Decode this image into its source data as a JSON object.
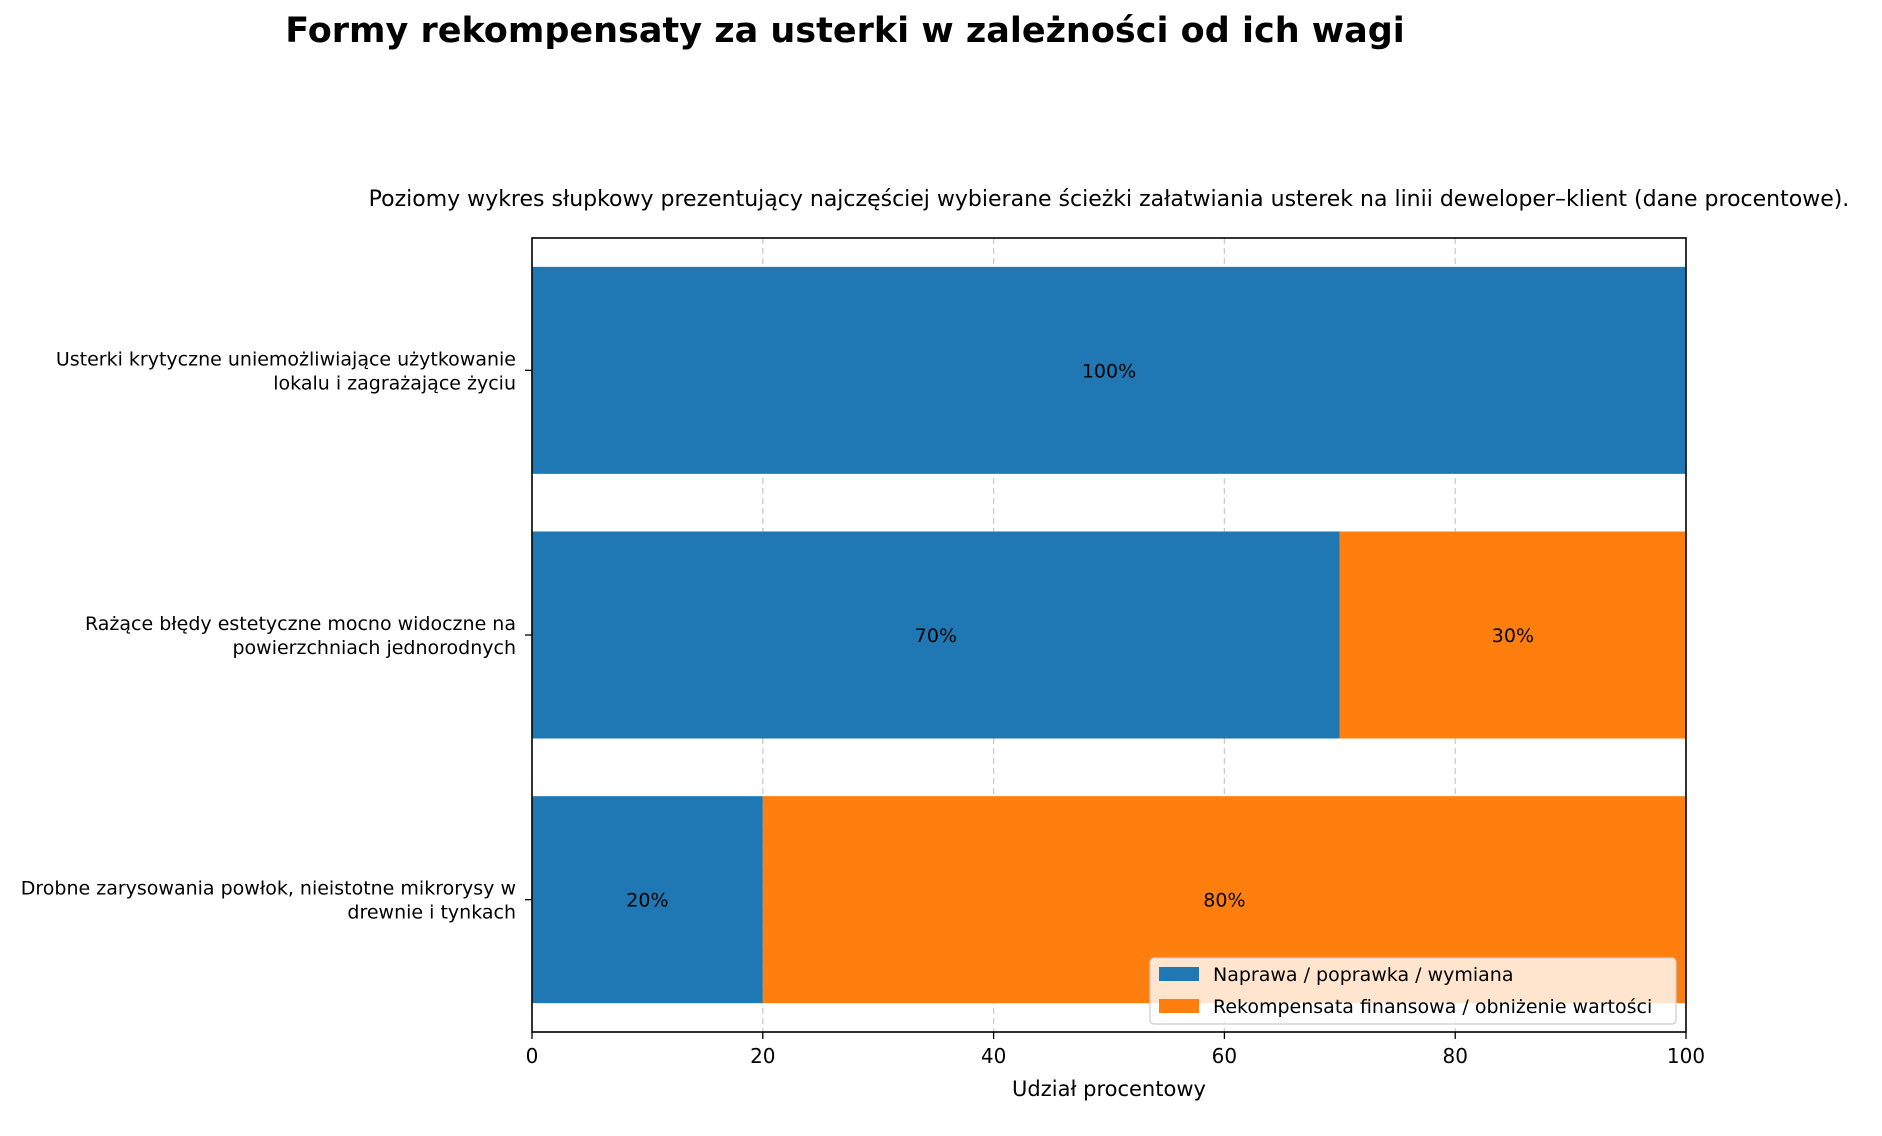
{
  "chart_data": {
    "type": "bar",
    "orientation": "horizontal",
    "stacked": true,
    "title": "Formy rekompensaty za usterki w zależności od ich wagi",
    "subtitle": "Poziomy wykres słupkowy prezentujący najczęściej wybierane ścieżki załatwiania usterek na linii deweloper–klient (dane procentowe).",
    "xlabel": "Udział procentowy",
    "ylabel": "",
    "xlim": [
      0,
      100
    ],
    "xticks": [
      0,
      20,
      40,
      60,
      80,
      100
    ],
    "grid": "vertical-dashed",
    "legend_position": "bottom-right",
    "categories": [
      [
        "Usterki krytyczne uniemożliwiające użytkowanie",
        "lokalu i zagrażające życiu"
      ],
      [
        "Rażące błędy estetyczne mocno widoczne na",
        "powierzchniach jednorodnych"
      ],
      [
        "Drobne zarysowania powłok, nieistotne mikrorysy w",
        "drewnie i tynkach"
      ]
    ],
    "series": [
      {
        "name": "Naprawa / poprawka / wymiana",
        "color": "#1f77b4",
        "values": [
          100,
          70,
          20
        ]
      },
      {
        "name": "Rekompensata finansowa / obniżenie wartości",
        "color": "#ff7f0e",
        "values": [
          0,
          30,
          80
        ]
      }
    ],
    "value_suffix": "%"
  }
}
